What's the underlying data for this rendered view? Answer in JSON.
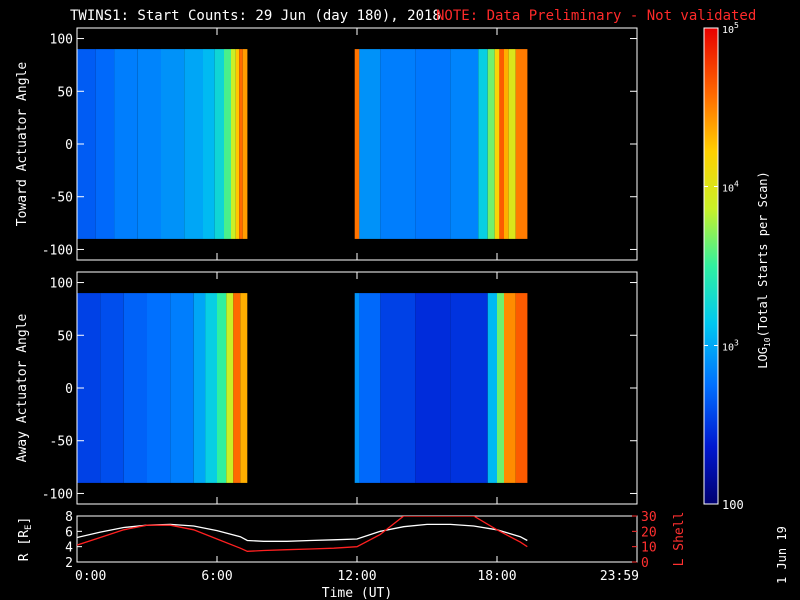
{
  "header": {
    "title": "TWINS1: Start Counts: 29 Jun (day 180), 2018",
    "note": "NOTE: Data Preliminary - Not validated"
  },
  "footer": {
    "date_stamp": "1 Jun 19"
  },
  "colors": {
    "line_r": "#ffffff",
    "line_l": "#ff2020",
    "note": "#ff2a2a"
  },
  "chart_data": [
    {
      "type": "heatmap",
      "ylabel": "Toward Actuator Angle",
      "xlim": [
        0,
        24
      ],
      "ylim": [
        -110,
        110
      ],
      "yticks": [
        "100",
        "50",
        "0",
        "-50",
        "-100"
      ],
      "angle_range": [
        -90,
        90
      ],
      "data_gap_hours": [
        7.3,
        11.9
      ],
      "segments": [
        {
          "t0": 0.0,
          "t1": 0.8,
          "level": 0.22
        },
        {
          "t0": 0.8,
          "t1": 1.6,
          "level": 0.24
        },
        {
          "t0": 1.6,
          "t1": 2.6,
          "level": 0.27
        },
        {
          "t0": 2.6,
          "t1": 3.6,
          "level": 0.28
        },
        {
          "t0": 3.6,
          "t1": 4.6,
          "level": 0.3
        },
        {
          "t0": 4.6,
          "t1": 5.4,
          "level": 0.33
        },
        {
          "t0": 5.4,
          "t1": 5.9,
          "level": 0.36
        },
        {
          "t0": 5.9,
          "t1": 6.3,
          "level": 0.42
        },
        {
          "t0": 6.3,
          "t1": 6.6,
          "level": 0.52
        },
        {
          "t0": 6.6,
          "t1": 6.8,
          "level": 0.62
        },
        {
          "t0": 6.8,
          "t1": 6.95,
          "level": 0.75
        },
        {
          "t0": 6.95,
          "t1": 7.1,
          "level": 0.86
        },
        {
          "t0": 7.1,
          "t1": 7.3,
          "level": 0.8
        },
        {
          "t0": 11.9,
          "t1": 12.1,
          "level": 0.85
        },
        {
          "t0": 12.1,
          "t1": 13.0,
          "level": 0.3
        },
        {
          "t0": 13.0,
          "t1": 14.5,
          "level": 0.27
        },
        {
          "t0": 14.5,
          "t1": 16.0,
          "level": 0.26
        },
        {
          "t0": 16.0,
          "t1": 17.2,
          "level": 0.28
        },
        {
          "t0": 17.2,
          "t1": 17.6,
          "level": 0.4
        },
        {
          "t0": 17.6,
          "t1": 17.9,
          "level": 0.55
        },
        {
          "t0": 17.9,
          "t1": 18.1,
          "level": 0.72
        },
        {
          "t0": 18.1,
          "t1": 18.3,
          "level": 0.88
        },
        {
          "t0": 18.3,
          "t1": 18.5,
          "level": 0.78
        },
        {
          "t0": 18.5,
          "t1": 18.8,
          "level": 0.66
        },
        {
          "t0": 18.8,
          "t1": 19.3,
          "level": 0.84
        }
      ]
    },
    {
      "type": "heatmap",
      "ylabel": "Away Actuator Angle",
      "xlim": [
        0,
        24
      ],
      "ylim": [
        -110,
        110
      ],
      "yticks": [
        "100",
        "50",
        "0",
        "-50",
        "-100"
      ],
      "angle_range": [
        -90,
        90
      ],
      "data_gap_hours": [
        7.3,
        11.9
      ],
      "segments": [
        {
          "t0": 0.0,
          "t1": 1.0,
          "level": 0.18
        },
        {
          "t0": 1.0,
          "t1": 2.0,
          "level": 0.2
        },
        {
          "t0": 2.0,
          "t1": 3.0,
          "level": 0.23
        },
        {
          "t0": 3.0,
          "t1": 4.0,
          "level": 0.25
        },
        {
          "t0": 4.0,
          "t1": 5.0,
          "level": 0.27
        },
        {
          "t0": 5.0,
          "t1": 5.5,
          "level": 0.33
        },
        {
          "t0": 5.5,
          "t1": 6.0,
          "level": 0.4
        },
        {
          "t0": 6.0,
          "t1": 6.4,
          "level": 0.5
        },
        {
          "t0": 6.4,
          "t1": 6.7,
          "level": 0.62
        },
        {
          "t0": 6.7,
          "t1": 7.0,
          "level": 0.86
        },
        {
          "t0": 7.0,
          "t1": 7.3,
          "level": 0.78
        },
        {
          "t0": 11.9,
          "t1": 12.1,
          "level": 0.3
        },
        {
          "t0": 12.1,
          "t1": 13.0,
          "level": 0.24
        },
        {
          "t0": 13.0,
          "t1": 14.5,
          "level": 0.18
        },
        {
          "t0": 14.5,
          "t1": 16.0,
          "level": 0.15
        },
        {
          "t0": 16.0,
          "t1": 17.6,
          "level": 0.16
        },
        {
          "t0": 17.6,
          "t1": 18.0,
          "level": 0.36
        },
        {
          "t0": 18.0,
          "t1": 18.3,
          "level": 0.55
        },
        {
          "t0": 18.3,
          "t1": 18.8,
          "level": 0.82
        },
        {
          "t0": 18.8,
          "t1": 19.3,
          "level": 0.88
        }
      ]
    },
    {
      "type": "line",
      "ylabel": "R [R",
      "ylabel_sub": "E",
      "ylabel_close": "]",
      "ylabel_right": "L Shell",
      "xlabel": "Time (UT)",
      "xlim": [
        0,
        24
      ],
      "ylim_left": [
        2,
        8
      ],
      "ylim_right": [
        0,
        30
      ],
      "xtick_hours": [
        0,
        6,
        12,
        18,
        24
      ],
      "xticks": [
        "0:00",
        "6:00",
        "12:00",
        "18:00",
        "23:59"
      ],
      "yticks_left": [
        "8",
        "6",
        "4",
        "2"
      ],
      "yticks_right": [
        "30",
        "20",
        "10",
        "0"
      ],
      "series": [
        {
          "axis": "left",
          "x": [
            0,
            1,
            2,
            3,
            4,
            5,
            6,
            7,
            7.3,
            8,
            9,
            10,
            11,
            12,
            13,
            14,
            15,
            16,
            17,
            18,
            19,
            19.3
          ],
          "y": [
            5.2,
            5.9,
            6.5,
            6.8,
            6.9,
            6.7,
            6.1,
            5.3,
            4.8,
            4.7,
            4.7,
            4.8,
            4.9,
            5.0,
            6.0,
            6.6,
            6.9,
            6.9,
            6.7,
            6.2,
            5.3,
            4.8
          ]
        },
        {
          "axis": "right",
          "x": [
            0,
            1,
            2,
            3,
            4,
            5,
            6,
            7,
            7.3,
            8,
            9,
            10,
            11,
            12,
            13,
            14,
            16,
            17,
            18,
            19,
            19.3
          ],
          "y": [
            11,
            16,
            21,
            24,
            24,
            21,
            15,
            9,
            7,
            7.5,
            8,
            8.5,
            9,
            10,
            18,
            30,
            30,
            30,
            21,
            13,
            10
          ]
        }
      ]
    }
  ],
  "colorbar": {
    "label_prefix": "LOG",
    "label_sub": "10",
    "label_suffix": "(Total Starts per Scan)",
    "ticks": [
      {
        "text": "10",
        "sup": "5",
        "frac": 1.0
      },
      {
        "text": "10",
        "sup": "4",
        "frac": 0.667
      },
      {
        "text": "10",
        "sup": "3",
        "frac": 0.333
      },
      {
        "text": "100",
        "sup": "",
        "frac": 0.0
      }
    ]
  }
}
